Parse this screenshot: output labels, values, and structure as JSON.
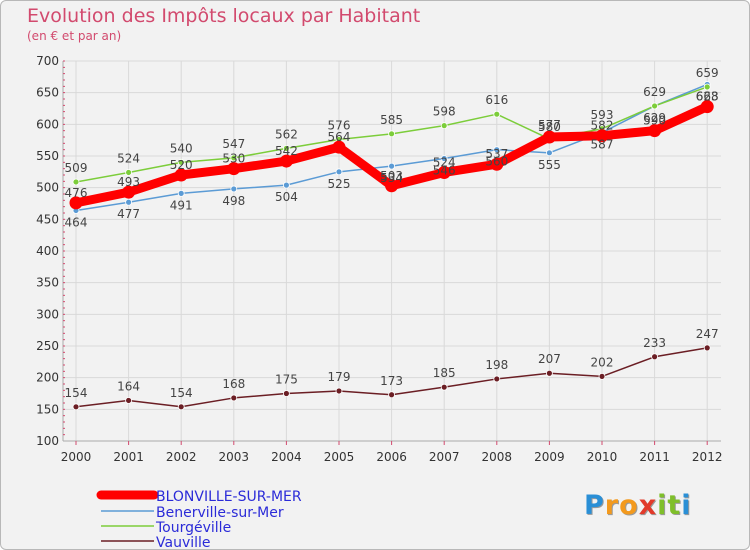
{
  "title": "Evolution des Impôts locaux par Habitant",
  "subtitle": "(en € et par an)",
  "logo": {
    "letters": [
      "P",
      "r",
      "o",
      "x",
      "i",
      "t",
      "i"
    ],
    "colors": [
      "#2a8fd6",
      "#f39a1e",
      "#f39a1e",
      "#e23a2a",
      "#7fbf2a",
      "#7fbf2a",
      "#2a8fd6"
    ]
  },
  "chart_data": {
    "type": "line",
    "title": "Evolution des Impôts locaux par Habitant",
    "subtitle": "(en € et par an)",
    "x": [
      "2000",
      "2001",
      "2002",
      "2003",
      "2004",
      "2005",
      "2006",
      "2007",
      "2008",
      "2009",
      "2010",
      "2011",
      "2012"
    ],
    "ylim": [
      100,
      700
    ],
    "yticks": [
      "100",
      "150",
      "200",
      "250",
      "300",
      "350",
      "400",
      "450",
      "500",
      "550",
      "600",
      "650",
      "700"
    ],
    "grid": true,
    "legend_position": "bottom-left",
    "series": [
      {
        "name": "BLONVILLE-SUR-MER",
        "color": "#ff0000",
        "values": [
          476,
          493,
          520,
          530,
          542,
          564,
          503,
          524,
          537,
          580,
          582,
          590,
          628
        ],
        "labels": [
          "476",
          "493",
          "520",
          "530",
          "542",
          "564",
          "503",
          "524",
          "537",
          "580",
          "582",
          "590",
          "628"
        ]
      },
      {
        "name": "Benerville-sur-Mer",
        "color": "#5b9bd5",
        "values": [
          464,
          477,
          491,
          498,
          504,
          525,
          534,
          546,
          560,
          555,
          587,
          629,
          663
        ],
        "labels": [
          "464",
          "477",
          "491",
          "498",
          "504",
          "525",
          "534",
          "546",
          "560",
          "555",
          "587",
          "629",
          "663"
        ]
      },
      {
        "name": "Tourgéville",
        "color": "#7ccd3a",
        "values": [
          509,
          524,
          540,
          547,
          562,
          576,
          585,
          598,
          616,
          577,
          593,
          629,
          659
        ],
        "labels": [
          "509",
          "524",
          "540",
          "547",
          "562",
          "576",
          "585",
          "598",
          "616",
          "577",
          "593",
          "629",
          "659"
        ]
      },
      {
        "name": "Vauville",
        "color": "#6b1e24",
        "values": [
          154,
          164,
          154,
          168,
          175,
          179,
          173,
          185,
          198,
          207,
          202,
          233,
          247
        ],
        "labels": [
          "154",
          "164",
          "154",
          "168",
          "175",
          "179",
          "173",
          "185",
          "198",
          "207",
          "202",
          "233",
          "247"
        ]
      }
    ]
  }
}
